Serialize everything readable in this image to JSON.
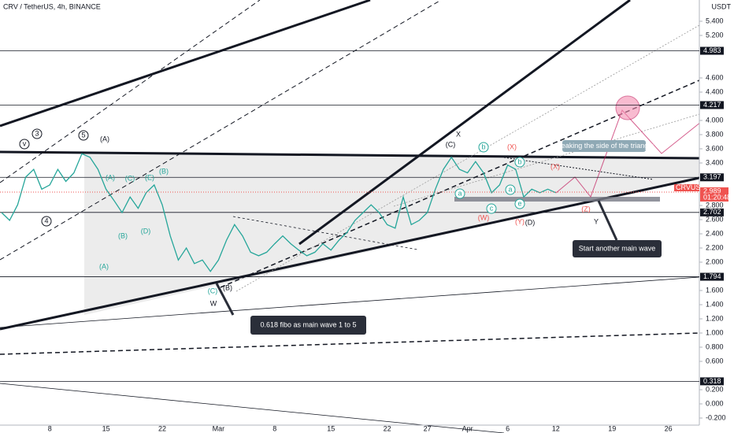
{
  "chart_data": {
    "type": "line",
    "title": "CRV / TetherUS, 4h, BINANCE",
    "currency": "USDT",
    "categories": [
      null,
      null,
      null,
      null,
      null,
      null,
      "8",
      null,
      null,
      null,
      null,
      null,
      null,
      "15",
      null,
      null,
      null,
      null,
      null,
      null,
      "22",
      null,
      null,
      null,
      null,
      null,
      null,
      "Mar",
      null,
      null,
      null,
      null,
      null,
      null,
      "8",
      null,
      null,
      null,
      null,
      null,
      null,
      "15",
      null,
      null,
      null,
      null,
      null,
      null,
      "22",
      null,
      null,
      null,
      null,
      "27",
      null,
      null,
      null,
      null,
      "Apr",
      null,
      null,
      null,
      null,
      "6",
      null,
      null,
      null,
      null,
      null,
      "12",
      null,
      null,
      null,
      null,
      null,
      null,
      "19",
      null,
      null,
      null,
      null,
      null,
      null,
      "26",
      null,
      null
    ],
    "series": [
      {
        "name": "CRVUSDT",
        "color": "#26a69a",
        "values": [
          2.7,
          2.59,
          2.81,
          3.2,
          3.31,
          3.03,
          3.09,
          3.31,
          3.14,
          3.26,
          3.53,
          3.48,
          3.31,
          3.03,
          2.87,
          2.7,
          2.92,
          2.76,
          2.98,
          3.09,
          2.81,
          2.37,
          2.03,
          2.2,
          1.98,
          2.03,
          1.87,
          2.03,
          2.31,
          2.53,
          2.37,
          2.14,
          2.09,
          2.14,
          2.26,
          2.37,
          2.26,
          2.17,
          2.09,
          2.14,
          2.26,
          2.17,
          2.31,
          2.42,
          2.59,
          2.7,
          2.81,
          2.7,
          2.53,
          2.48,
          2.92,
          2.53,
          2.59,
          2.7,
          3.03,
          3.31,
          3.48,
          3.31,
          3.26,
          3.42,
          3.26,
          2.98,
          3.09,
          3.37,
          3.31,
          2.92,
          3.03,
          2.98,
          3.03,
          2.98,
          null,
          null,
          null,
          null,
          null,
          null,
          null,
          null,
          null,
          null,
          null,
          null,
          null,
          null,
          null,
          null
        ]
      }
    ],
    "ylim": [
      -0.3,
      5.7
    ],
    "yticks": [
      {
        "value": 5.4,
        "label": "5.400"
      },
      {
        "value": 5.2,
        "label": "5.200"
      },
      {
        "value": 4.6,
        "label": "4.600"
      },
      {
        "value": 4.4,
        "label": "4.400"
      },
      {
        "value": 4,
        "label": "4.000"
      },
      {
        "value": 3.8,
        "label": "3.800"
      },
      {
        "value": 3.6,
        "label": "3.600"
      },
      {
        "value": 3.4,
        "label": "3.400"
      },
      {
        "value": 2.8,
        "label": "2.800"
      },
      {
        "value": 2.6,
        "label": "2.600"
      },
      {
        "value": 2.4,
        "label": "2.400"
      },
      {
        "value": 2.2,
        "label": "2.200"
      },
      {
        "value": 2,
        "label": "2.000"
      },
      {
        "value": 1.6,
        "label": "1.600"
      },
      {
        "value": 1.4,
        "label": "1.400"
      },
      {
        "value": 1.2,
        "label": "1.200"
      },
      {
        "value": 1,
        "label": "1.000"
      },
      {
        "value": 0.8,
        "label": "0.800"
      },
      {
        "value": 0.6,
        "label": "0.600"
      },
      {
        "value": 0.2,
        "label": "0.200"
      },
      {
        "value": 0,
        "label": "0.000"
      },
      {
        "value": -0.2,
        "label": "-0.200"
      }
    ],
    "levels": [
      4.983,
      4.217,
      3.197,
      2.702,
      1.794,
      0.318
    ],
    "last_price": {
      "name": "CRVUSDT",
      "value": 2.989,
      "countdown": "01:20:48"
    },
    "grid": false,
    "annotations": [
      "(A)",
      "5",
      "3",
      "v",
      "4",
      "(A)",
      "(B)",
      "(C)",
      "(D)",
      "(E)",
      "(B)",
      "(A)",
      "(C)",
      "(B)",
      "W",
      "X",
      "(C)",
      "b",
      "(X)",
      "(X)",
      "a",
      "c",
      "a",
      "b",
      "e",
      "(W)",
      "(Y)",
      "(D)",
      "(Z)",
      "Y"
    ],
    "callouts": [
      "0.618 fibo as main wave 1 to 5",
      "Start another main wave",
      "Breaking the side of the triangle"
    ]
  }
}
